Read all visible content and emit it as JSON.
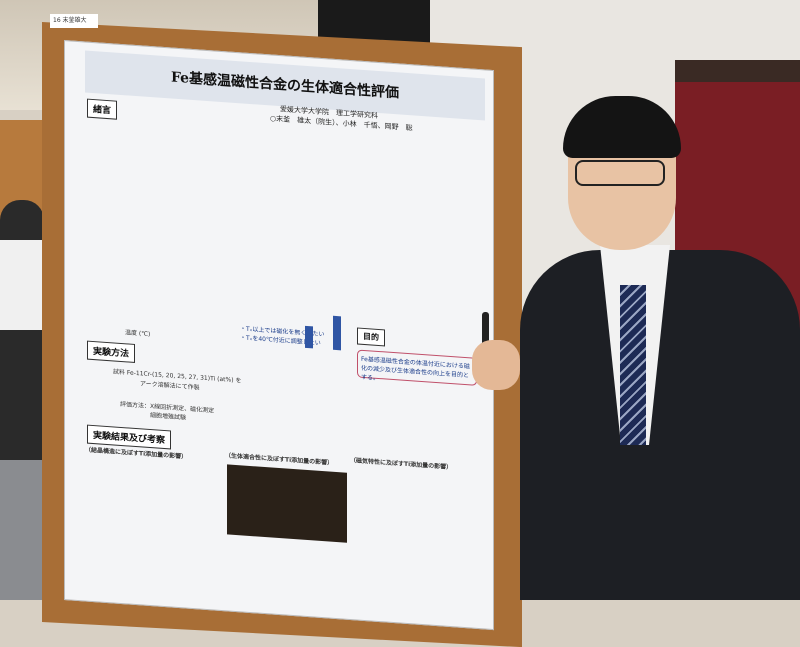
{
  "scene": {
    "board_tag": "16 末釜雄大",
    "poster": {
      "title": "Fe基感温磁性合金の生体適合性評価",
      "affiliation": "愛媛大学大学院　理工学研究科",
      "authors": "○末釜　雄太（院生）、小林　千悟、岡野　聡",
      "sections": {
        "intro": "緒言",
        "purpose": "目的",
        "purpose_text": "Fe基感温磁性合金の体温付近における磁化の減少及び生体適合性の向上を目的とする。",
        "method": "実験方法",
        "method_sample": "試料 Fe-11Cr-(15, 20, 25, 27, 31)Ti (at%) を",
        "method_arc": "アーク溶解法にて作製",
        "method_eval": "評価方法：X線回折測定、磁化測定",
        "method_eval2": "細胞増殖試験",
        "results": "実験結果及び考察",
        "sub1": "（結晶構造に及ぼすTi添加量の影響）",
        "sub2": "（生体適合性に及ぼすTi添加量の影響）",
        "sub3": "（磁気特性に及ぼすTi添加量の影響）",
        "graph_note1": "・Tₓ以上では磁化を無くしたい",
        "graph_note2": "・Tₓを40℃付近に調整したい",
        "axis_temp": "温度 (℃)"
      }
    }
  }
}
